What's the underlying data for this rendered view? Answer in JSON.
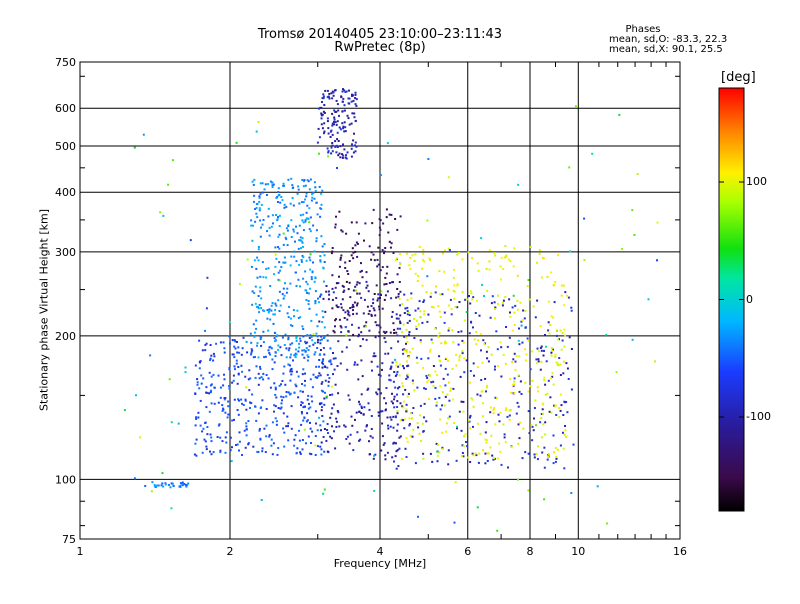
{
  "header": {
    "title_line1": "Tromsø 20140405 23:10:00–23:11:43",
    "title_line2": "RwPretec (8p)",
    "stats_heading": "Phases",
    "stats_o": "mean, sd,O: -83.3, 22.3",
    "stats_x": "mean, sd,X:  90.1, 25.5"
  },
  "colorbar": {
    "unit_label": "[deg]",
    "tick_labels": [
      "100",
      "0",
      "-100"
    ],
    "tick_values": [
      100,
      0,
      -100
    ],
    "range": [
      -180,
      180
    ],
    "colormap": "rainbow (black-purple-blue-cyan-green-yellow-orange-red)"
  },
  "chart_data": {
    "type": "scatter",
    "title": "Tromsø 20140405 23:10:00–23:11:43",
    "subtitle": "RwPretec (8p)",
    "xlabel": "Frequency [MHz]",
    "ylabel": "Stationary phase Virtual Height [km]",
    "xscale": "log",
    "yscale": "log",
    "xlim": [
      1,
      16
    ],
    "ylim": [
      75,
      750
    ],
    "xticks": [
      1,
      2,
      4,
      6,
      8,
      10,
      16
    ],
    "xtick_labels": [
      "1",
      "2",
      "4",
      "6",
      "8",
      "10",
      "16"
    ],
    "yticks": [
      75,
      100,
      200,
      300,
      400,
      500,
      600,
      750
    ],
    "ytick_labels": [
      "75",
      "100",
      "200",
      "300",
      "400",
      "500",
      "600",
      "750"
    ],
    "grid": true,
    "color_encoding": "phase [deg]",
    "clusters": [
      {
        "name": "O-mode low E-trace",
        "x_range": [
          1.35,
          1.65
        ],
        "y_range": [
          96,
          99
        ],
        "phase": -60,
        "count": 30
      },
      {
        "name": "O-mode main trace",
        "x_range": [
          1.7,
          3.2
        ],
        "y_range": [
          112,
          200
        ],
        "phase": -80,
        "count": 420
      },
      {
        "name": "O-mode spread column",
        "x_range": [
          2.2,
          3.1
        ],
        "y_range": [
          180,
          430
        ],
        "phase": -55,
        "count": 380
      },
      {
        "name": "O-mode high echoes",
        "x_range": [
          3.0,
          3.6
        ],
        "y_range": [
          470,
          660
        ],
        "phase": -105,
        "count": 150
      },
      {
        "name": "O-mode ramp",
        "x_range": [
          3.0,
          4.6
        ],
        "y_range": [
          110,
          260
        ],
        "phase": -110,
        "count": 260
      },
      {
        "name": "O-mode upper arc",
        "x_range": [
          3.2,
          4.4
        ],
        "y_range": [
          200,
          370
        ],
        "phase": -140,
        "count": 160
      },
      {
        "name": "O-mode right band",
        "x_range": [
          4.2,
          9.8
        ],
        "y_range": [
          105,
          250
        ],
        "phase": -100,
        "count": 320
      },
      {
        "name": "X-mode trace",
        "x_range": [
          4.3,
          9.5
        ],
        "y_range": [
          110,
          310
        ],
        "phase": 90,
        "count": 380
      },
      {
        "name": "Scattered points",
        "x_range": [
          1.2,
          15.0
        ],
        "y_range": [
          78,
          620
        ],
        "phase": 0,
        "count": 120
      }
    ]
  }
}
